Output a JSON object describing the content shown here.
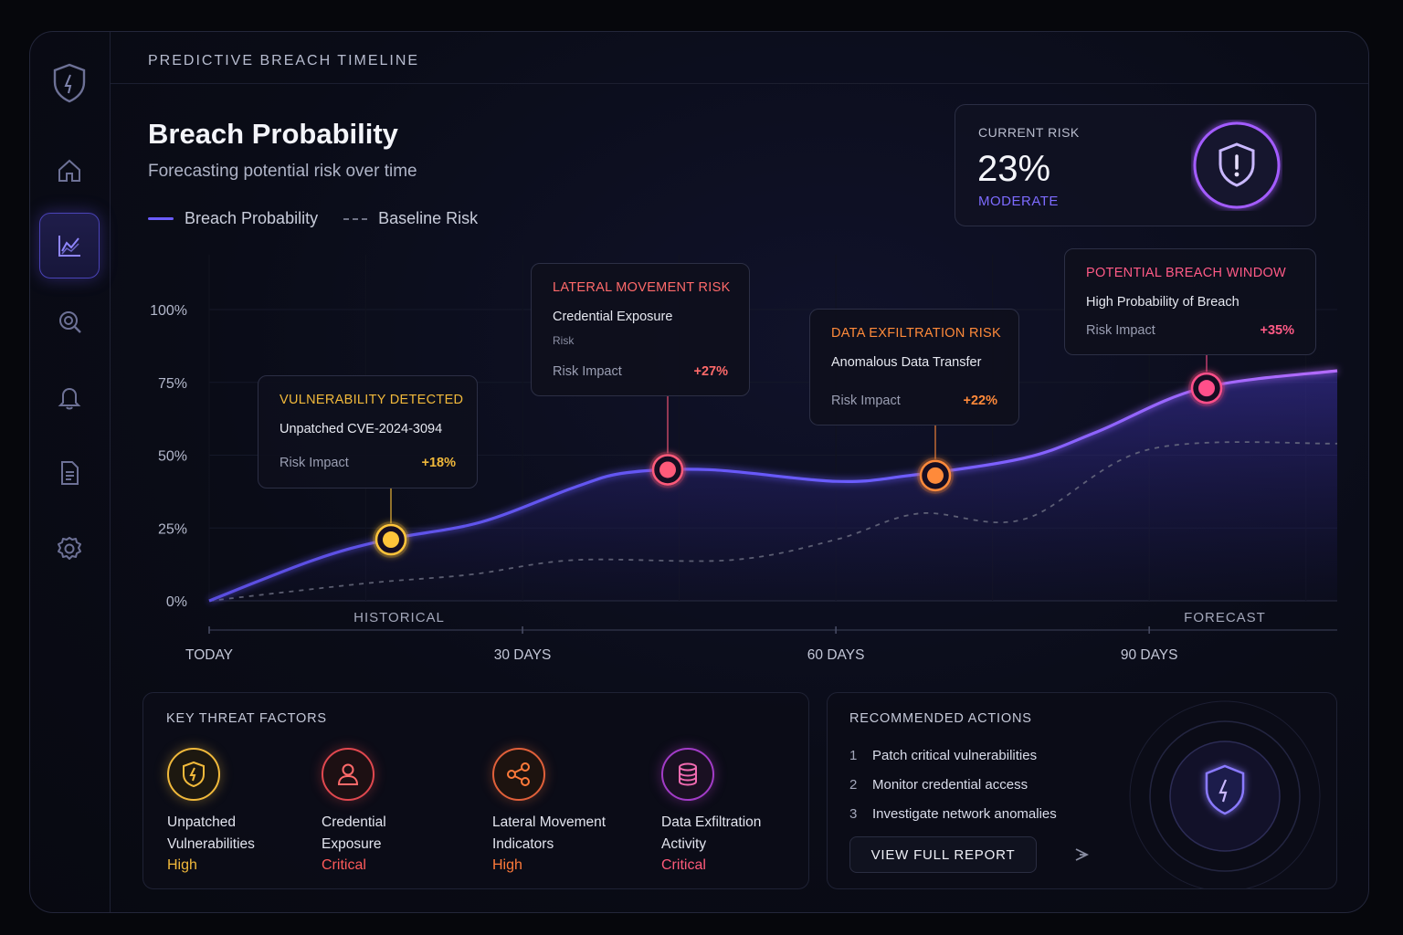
{
  "page": {
    "title": "PREDICTIVE BREACH TIMELINE"
  },
  "sidebar": {
    "items": [
      {
        "icon": "home-icon"
      },
      {
        "icon": "chart-icon",
        "active": true
      },
      {
        "icon": "search-icon"
      },
      {
        "icon": "bell-icon"
      },
      {
        "icon": "document-icon"
      },
      {
        "icon": "gear-icon"
      }
    ]
  },
  "chart": {
    "title": "Breach Probability",
    "subtitle": "Forecasting potential risk over time",
    "legend": {
      "primary": "Breach Probability",
      "secondary": "Baseline Risk"
    }
  },
  "current_risk": {
    "label": "CURRENT RISK",
    "value": "23%",
    "level": "MODERATE",
    "level_color": "#7d6bff"
  },
  "chart_data": {
    "type": "area",
    "ylabel": "",
    "ylim": [
      0,
      100
    ],
    "yticks": [
      "100%",
      "75%",
      "50%",
      "25%",
      "0%"
    ],
    "xticks": [
      "TODAY",
      "30 DAYS",
      "60 DAYS",
      "90 DAYS"
    ],
    "x_days": [
      0,
      30,
      60,
      90
    ],
    "regions": [
      "HISTORICAL",
      "FORECAST"
    ],
    "series": [
      {
        "name": "Breach Probability",
        "color": "#6b5cff",
        "x": [
          0,
          10,
          17,
          26,
          35,
          40,
          48,
          60,
          67,
          78,
          85,
          95,
          108
        ],
        "y": [
          0,
          14,
          21,
          27,
          39,
          44,
          45,
          41,
          43,
          49,
          58,
          73,
          79
        ]
      },
      {
        "name": "Baseline Risk",
        "color": "#6f7285",
        "x": [
          0,
          15,
          25,
          35,
          50,
          60,
          68,
          78,
          90,
          108
        ],
        "y": [
          0,
          6,
          9,
          14,
          14,
          21,
          30,
          28,
          52,
          54
        ]
      }
    ],
    "events": [
      {
        "x": 17,
        "y": 21,
        "color": "#ffc43a"
      },
      {
        "x": 44,
        "y": 45,
        "color": "#ff5a7a"
      },
      {
        "x": 69,
        "y": 43,
        "color": "#ff8a3a"
      },
      {
        "x": 95,
        "y": 73,
        "color": "#ff4f8a"
      }
    ]
  },
  "callouts": [
    {
      "title": "VULNERABILITY DETECTED",
      "title_color": "#f1b93b",
      "detail": "Unpatched CVE-2024-3094",
      "extra": "",
      "impact_label": "Risk Impact",
      "impact": "+18%",
      "impact_color": "#f1b93b"
    },
    {
      "title": "LATERAL MOVEMENT RISK",
      "title_color": "#ff6a6a",
      "detail": "Credential Exposure",
      "extra": "Risk",
      "impact_label": "Risk Impact",
      "impact": "+27%",
      "impact_color": "#ff6a6a"
    },
    {
      "title": "DATA EXFILTRATION RISK",
      "title_color": "#ff8a3a",
      "detail": "Anomalous Data Transfer",
      "extra": "",
      "impact_label": "Risk Impact",
      "impact": "+22%",
      "impact_color": "#ff8a3a"
    },
    {
      "title": "POTENTIAL BREACH WINDOW",
      "title_color": "#ff5a86",
      "detail": "High Probability of Breach",
      "extra": "",
      "impact_label": "Risk Impact",
      "impact": "+35%",
      "impact_color": "#ff5a86"
    }
  ],
  "threat_factors": {
    "title": "KEY THREAT FACTORS",
    "items": [
      {
        "icon": "shield-icon",
        "name": "Unpatched\nVulnerabilities",
        "line1": "Unpatched",
        "line2": "Vulnerabilities",
        "severity": "High",
        "color": "#f1b93b"
      },
      {
        "icon": "user-icon",
        "line1": "Credential",
        "line2": "Exposure",
        "severity": "Critical",
        "color": "#ff5a5a"
      },
      {
        "icon": "share-icon",
        "line1": "Lateral Movement",
        "line2": "Indicators",
        "severity": "High",
        "color": "#ff7a3a"
      },
      {
        "icon": "database-icon",
        "line1": "Data Exfiltration",
        "line2": "Activity",
        "severity": "Critical",
        "color": "#ff5a7a"
      }
    ]
  },
  "recommended": {
    "title": "RECOMMENDED ACTIONS",
    "items": [
      {
        "n": "1",
        "text": "Patch critical vulnerabilities"
      },
      {
        "n": "2",
        "text": "Monitor credential access"
      },
      {
        "n": "3",
        "text": "Investigate network anomalies"
      }
    ],
    "button": "VIEW FULL REPORT"
  }
}
